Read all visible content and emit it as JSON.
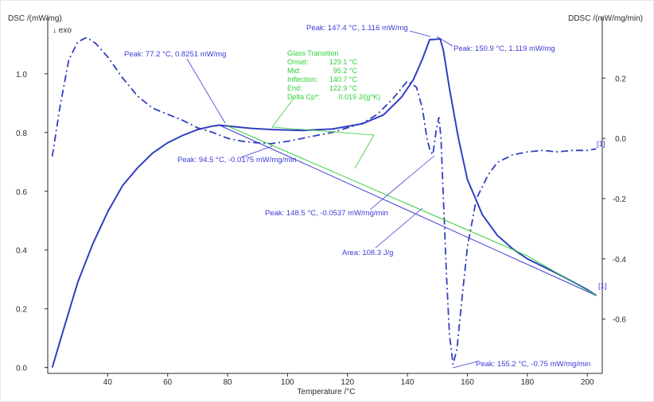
{
  "chart_data": {
    "type": "line",
    "xlabel": "Temperature /°C",
    "ylabel_left": "DSC /(mW/mg)",
    "ylabel_right": "DDSC /(mW/mg/min)",
    "exo_label": "↓ exo",
    "xlim": [
      20,
      205
    ],
    "ylim_left": [
      -0.02,
      1.17
    ],
    "ylim_right": [
      -0.78,
      0.38
    ],
    "x_ticks": [
      "40",
      "60",
      "80",
      "100",
      "120",
      "140",
      "160",
      "180",
      "200"
    ],
    "y_left_ticks": [
      "0.0",
      "0.2",
      "0.4",
      "0.6",
      "0.8",
      "1.0"
    ],
    "y_right_ticks": [
      "0.2",
      "0.0",
      "-0.2",
      "-0.4",
      "-0.6"
    ],
    "colors": {
      "curves": "#2f3fc0",
      "annotation": "#3b3bd6",
      "glass": "#2fcf3a",
      "axis": "#2b2b2b"
    },
    "series": [
      {
        "axis": "left",
        "style": "solid",
        "points": [
          [
            21.5,
            0.0
          ],
          [
            25,
            0.12
          ],
          [
            30,
            0.29
          ],
          [
            35,
            0.42
          ],
          [
            40,
            0.53
          ],
          [
            45,
            0.62
          ],
          [
            50,
            0.68
          ],
          [
            55,
            0.73
          ],
          [
            60,
            0.765
          ],
          [
            65,
            0.79
          ],
          [
            70,
            0.81
          ],
          [
            75,
            0.822
          ],
          [
            77.2,
            0.8251
          ],
          [
            82,
            0.82
          ],
          [
            88,
            0.814
          ],
          [
            95,
            0.81
          ],
          [
            105,
            0.807
          ],
          [
            115,
            0.812
          ],
          [
            125,
            0.83
          ],
          [
            132,
            0.86
          ],
          [
            138,
            0.92
          ],
          [
            142,
            0.98
          ],
          [
            145,
            1.05
          ],
          [
            147.4,
            1.116
          ],
          [
            149,
            1.117
          ],
          [
            150.9,
            1.119
          ],
          [
            152,
            1.08
          ],
          [
            154,
            0.95
          ],
          [
            157,
            0.78
          ],
          [
            160,
            0.64
          ],
          [
            165,
            0.52
          ],
          [
            170,
            0.45
          ],
          [
            175,
            0.405
          ],
          [
            180,
            0.37
          ],
          [
            190,
            0.32
          ],
          [
            200,
            0.265
          ],
          [
            203,
            0.245
          ]
        ]
      },
      {
        "axis": "right",
        "style": "dash-dot",
        "points": [
          [
            21.5,
            -0.06
          ],
          [
            24,
            0.1
          ],
          [
            27,
            0.26
          ],
          [
            30,
            0.32
          ],
          [
            33,
            0.335
          ],
          [
            36,
            0.315
          ],
          [
            40,
            0.27
          ],
          [
            45,
            0.2
          ],
          [
            50,
            0.14
          ],
          [
            55,
            0.1
          ],
          [
            60,
            0.08
          ],
          [
            65,
            0.06
          ],
          [
            70,
            0.035
          ],
          [
            75,
            0.02
          ],
          [
            80,
            0.0
          ],
          [
            85,
            -0.01
          ],
          [
            90,
            -0.015
          ],
          [
            94.5,
            -0.0175
          ],
          [
            100,
            -0.01
          ],
          [
            105,
            0.0
          ],
          [
            110,
            0.01
          ],
          [
            115,
            0.02
          ],
          [
            120,
            0.035
          ],
          [
            125,
            0.05
          ],
          [
            130,
            0.08
          ],
          [
            135,
            0.13
          ],
          [
            140,
            0.19
          ],
          [
            143,
            0.17
          ],
          [
            145,
            0.1
          ],
          [
            146.5,
            0.0
          ],
          [
            147.5,
            -0.04
          ],
          [
            148.5,
            -0.0537
          ],
          [
            149.5,
            0.02
          ],
          [
            150.5,
            0.07
          ],
          [
            151.2,
            0.0
          ],
          [
            152,
            -0.2
          ],
          [
            153,
            -0.45
          ],
          [
            154,
            -0.65
          ],
          [
            155.2,
            -0.75
          ],
          [
            156.5,
            -0.7
          ],
          [
            158,
            -0.55
          ],
          [
            160,
            -0.36
          ],
          [
            163,
            -0.2
          ],
          [
            167,
            -0.12
          ],
          [
            170,
            -0.08
          ],
          [
            175,
            -0.055
          ],
          [
            180,
            -0.045
          ],
          [
            185,
            -0.04
          ],
          [
            190,
            -0.045
          ],
          [
            195,
            -0.04
          ],
          [
            200,
            -0.04
          ],
          [
            203,
            -0.035
          ]
        ]
      },
      {
        "axis": "left",
        "style": "baseline-blue",
        "points": [
          [
            77.2,
            0.8251
          ],
          [
            203,
            0.245
          ]
        ]
      },
      {
        "axis": "left",
        "style": "baseline-green",
        "points": [
          [
            80,
            0.822
          ],
          [
            180,
            0.38
          ],
          [
            203,
            0.245
          ]
        ]
      }
    ],
    "glass_transition": {
      "title": "Glass Transition",
      "rows": [
        {
          "label": "Onset:",
          "value": "129.1 °C"
        },
        {
          "label": "Mid:",
          "value": "95.2 °C"
        },
        {
          "label": "Inflection:",
          "value": "140.7 °C"
        },
        {
          "label": "End:",
          "value": "122.9 °C"
        },
        {
          "label": "Delta Cp*:",
          "value": "0.019 J/(g*K)"
        }
      ]
    },
    "annotations": [
      {
        "id": "peak-772",
        "text": "Peak: 77.2 °C, 0.8251 mW/mg"
      },
      {
        "id": "peak-1474",
        "text": "Peak: 147.4 °C, 1.116 mW/mg"
      },
      {
        "id": "peak-1509",
        "text": "Peak: 150.9 °C, 1.119 mW/mg"
      },
      {
        "id": "peak-945",
        "text": "Peak: 94.5 °C, -0.0175 mW/mg/min"
      },
      {
        "id": "peak-1485",
        "text": "Peak: 148.5 °C, -0.0537 mW/mg/min"
      },
      {
        "id": "area",
        "text": "Area: 108.3 J/g"
      },
      {
        "id": "peak-1552",
        "text": "Peak: 155.2 °C, -0.75 mW/mg/min"
      }
    ],
    "curve_markers": [
      "[1]",
      "[1]"
    ]
  }
}
